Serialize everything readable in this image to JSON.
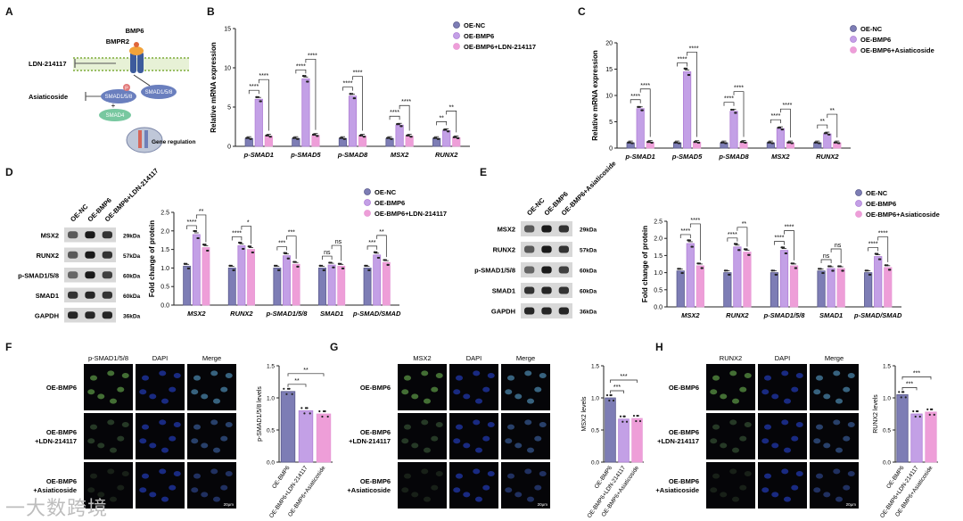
{
  "colors": {
    "nc": "#5a5a8c",
    "bmp6": "#b07fd6",
    "lnd": "#e79ad6",
    "dot": "#222222",
    "text": "#111111"
  },
  "panel_letters": {
    "A": "A",
    "B": "B",
    "C": "C",
    "D": "D",
    "E": "E",
    "F": "F",
    "G": "G",
    "H": "H"
  },
  "panelA": {
    "bmp6": "BMP6",
    "bmpr2": "BMPR2",
    "ldn": "LDN-214117",
    "asiaticoside": "Asiaticoside",
    "psmad": "SMAD1/5/8",
    "psmad_mark": "P",
    "smad158": "SMAD1/5/8",
    "smad4": "SMAD4",
    "gene": "Gene regulation"
  },
  "legend_B": [
    "OE-NC",
    "OE-BMP6",
    "OE-BMP6+LDN-214117"
  ],
  "legend_C": [
    "OE-NC",
    "OE-BMP6",
    "OE-BMP6+Asiaticoside"
  ],
  "blots_D": {
    "lanes": [
      "OE-NC",
      "OE-BMP6",
      "OE-BMP6+LDN-214117"
    ],
    "rows": [
      [
        "MSX2",
        "29kDa"
      ],
      [
        "RUNX2",
        "57kDa"
      ],
      [
        "p-SMAD1/5/8",
        "60kDa"
      ],
      [
        "SMAD1",
        "60kDa"
      ],
      [
        "GAPDH",
        "36kDa"
      ]
    ]
  },
  "blots_E": {
    "lanes": [
      "OE-NC",
      "OE-BMP6",
      "OE-BMP6+Asiaticoside"
    ],
    "rows": [
      [
        "MSX2",
        "29kDa"
      ],
      [
        "RUNX2",
        "57kDa"
      ],
      [
        "p-SMAD1/5/8",
        "60kDa"
      ],
      [
        "SMAD1",
        "60kDa"
      ],
      [
        "GAPDH",
        "36kDa"
      ]
    ]
  },
  "if_F": {
    "cols": [
      "p-SMAD1/5/8",
      "DAPI",
      "Merge"
    ],
    "rows": [
      "OE-BMP6",
      "OE-BMP6\n+LDN-214117",
      "OE-BMP6\n+Asiaticoside"
    ],
    "scale": "20μm"
  },
  "if_G": {
    "cols": [
      "MSX2",
      "DAPI",
      "Merge"
    ],
    "rows": [
      "OE-BMP6",
      "OE-BMP6\n+LDN-214117",
      "OE-BMP6\n+Asiaticoside"
    ],
    "scale": "20μm"
  },
  "if_H": {
    "cols": [
      "RUNX2",
      "DAPI",
      "Merge"
    ],
    "rows": [
      "OE-BMP6",
      "OE-BMP6\n+LDN-214117",
      "OE-BMP6\n+Asiaticoside"
    ],
    "scale": "20μm"
  },
  "watermark": "一大数跨境",
  "chart_data": [
    {
      "id": "B",
      "type": "bar",
      "ylabel": "Relative mRNA expression",
      "ylim": [
        0,
        15
      ],
      "yticks": [
        0,
        5,
        10,
        15
      ],
      "categories": [
        "p-SMAD1",
        "p-SMAD5",
        "p-SMAD8",
        "MSX2",
        "RUNX2"
      ],
      "series": [
        {
          "name": "OE-NC",
          "values": [
            1.0,
            1.0,
            1.0,
            1.0,
            1.0
          ]
        },
        {
          "name": "OE-BMP6",
          "values": [
            6.0,
            8.6,
            6.4,
            2.7,
            2.0
          ]
        },
        {
          "name": "OE-BMP6+LDN-214117",
          "values": [
            1.3,
            1.4,
            1.3,
            1.3,
            1.1
          ]
        }
      ],
      "sig": [
        [
          "****",
          "****"
        ],
        [
          "****",
          "****"
        ],
        [
          "****",
          "****"
        ],
        [
          "****",
          "****"
        ],
        [
          "**",
          "**"
        ]
      ]
    },
    {
      "id": "C",
      "type": "bar",
      "ylabel": "Relative mRNA expression",
      "ylim": [
        0,
        20
      ],
      "yticks": [
        0,
        5,
        10,
        15,
        20
      ],
      "categories": [
        "p-SMAD1",
        "p-SMAD5",
        "p-SMAD8",
        "MSX2",
        "RUNX2"
      ],
      "series": [
        {
          "name": "OE-NC",
          "values": [
            1.0,
            1.0,
            1.0,
            1.0,
            1.0
          ]
        },
        {
          "name": "OE-BMP6",
          "values": [
            7.5,
            14.5,
            7.0,
            3.7,
            2.7
          ]
        },
        {
          "name": "OE-BMP6+Asiaticoside",
          "values": [
            1.1,
            1.1,
            1.1,
            1.0,
            1.0
          ]
        }
      ],
      "sig": [
        [
          "****",
          "****"
        ],
        [
          "****",
          "****"
        ],
        [
          "****",
          "****"
        ],
        [
          "****",
          "****"
        ],
        [
          "**",
          "**"
        ]
      ]
    },
    {
      "id": "D",
      "type": "bar",
      "ylabel": "Fold change of protein",
      "ylim": [
        0,
        2.5
      ],
      "yticks": [
        0.0,
        0.5,
        1.0,
        1.5,
        2.0,
        2.5
      ],
      "categories": [
        "MSX2",
        "RUNX2",
        "p-SMAD1/5/8",
        "SMAD1",
        "p-SMAD/SMAD"
      ],
      "series": [
        {
          "name": "OE-NC",
          "values": [
            1.05,
            1.0,
            1.0,
            1.0,
            1.0
          ]
        },
        {
          "name": "OE-BMP6",
          "values": [
            1.9,
            1.6,
            1.33,
            1.08,
            1.35
          ]
        },
        {
          "name": "OE-BMP6+LDN-214117",
          "values": [
            1.55,
            1.5,
            1.1,
            1.05,
            1.15
          ]
        }
      ],
      "sig": [
        [
          "****",
          "**"
        ],
        [
          "****",
          "*"
        ],
        [
          "***",
          "***"
        ],
        [
          "ns",
          "ns"
        ],
        [
          "***",
          "**"
        ]
      ]
    },
    {
      "id": "E",
      "type": "bar",
      "ylabel": "Fold change of protein",
      "ylim": [
        0,
        2.5
      ],
      "yticks": [
        0.0,
        0.5,
        1.0,
        1.5,
        2.0,
        2.5
      ],
      "categories": [
        "MSX2",
        "RUNX2",
        "p-SMAD1/5/8",
        "SMAD1",
        "p-SMAD/SMAD"
      ],
      "series": [
        {
          "name": "OE-NC",
          "values": [
            1.05,
            1.0,
            1.0,
            1.05,
            1.0
          ]
        },
        {
          "name": "OE-BMP6",
          "values": [
            1.85,
            1.75,
            1.65,
            1.12,
            1.47
          ]
        },
        {
          "name": "OE-BMP6+Asiaticoside",
          "values": [
            1.2,
            1.6,
            1.2,
            1.12,
            1.15
          ]
        }
      ],
      "sig": [
        [
          "****",
          "****"
        ],
        [
          "****",
          "**"
        ],
        [
          "****",
          "****"
        ],
        [
          "ns",
          "ns"
        ],
        [
          "****",
          "****"
        ]
      ]
    },
    {
      "id": "F",
      "type": "bar",
      "ylabel": "p-SMAD1/5/8 levels",
      "ylim": [
        0,
        1.5
      ],
      "yticks": [
        0.0,
        0.5,
        1.0,
        1.5
      ],
      "categories": [
        "OE-BMP6",
        "OE-BMP6+LDN-214117",
        "OE-BMP6+Asiaticoside"
      ],
      "values": [
        1.1,
        0.8,
        0.75
      ],
      "sig": [
        "**",
        "**"
      ]
    },
    {
      "id": "G",
      "type": "bar",
      "ylabel": "MSX2 levels",
      "ylim": [
        0,
        1.5
      ],
      "yticks": [
        0.0,
        0.5,
        1.0,
        1.5
      ],
      "categories": [
        "OE-BMP6",
        "OE-BMP6+LDN-214117",
        "OE-BMP6+Asiaticoside"
      ],
      "values": [
        1.0,
        0.67,
        0.68
      ],
      "sig": [
        "***",
        "***"
      ]
    },
    {
      "id": "H",
      "type": "bar",
      "ylabel": "RUNX2 levels",
      "ylim": [
        0,
        1.5
      ],
      "yticks": [
        0.0,
        0.5,
        1.0,
        1.5
      ],
      "categories": [
        "OE-BMP6",
        "OE-BMP6+LDN-214117",
        "OE-BMP6+Asiaticoside"
      ],
      "values": [
        1.05,
        0.75,
        0.78
      ],
      "sig": [
        "***",
        "***"
      ]
    }
  ]
}
